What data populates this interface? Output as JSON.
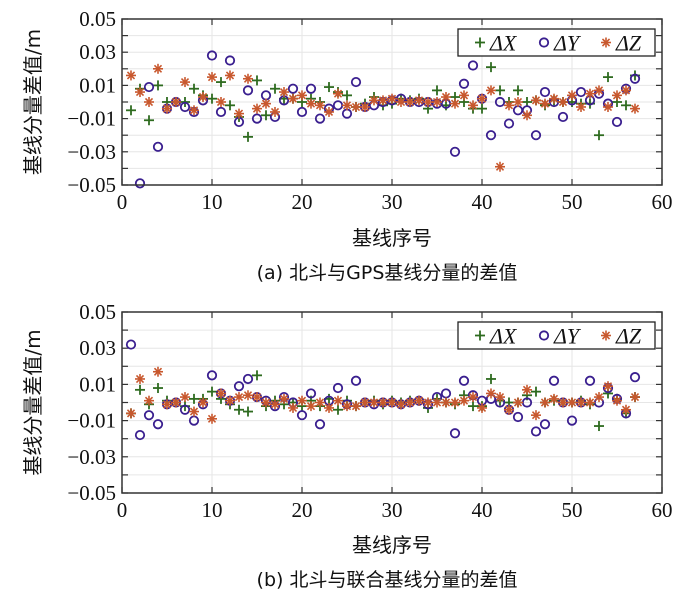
{
  "colors": {
    "dx": "#2e6b1f",
    "dy": "#3a1f8f",
    "dz": "#c8582e",
    "axis": "#333333",
    "grid": "#e6e6e6"
  },
  "chart_data": [
    {
      "type": "scatter",
      "caption": "(a) 北斗与GPS基线分量的差值",
      "xlabel": "基线序号",
      "ylabel": "基线分量差值/m",
      "xlim": [
        0,
        60
      ],
      "ylim": [
        -0.05,
        0.05
      ],
      "xticks": [
        "0",
        "10",
        "20",
        "30",
        "40",
        "50",
        "60"
      ],
      "yticks": [
        "0.05",
        "0.03",
        "0.01",
        "−0.01",
        "−0.03",
        "−0.05"
      ],
      "grid": true,
      "legend_position": "top-right",
      "x": [
        1,
        2,
        3,
        4,
        5,
        6,
        7,
        8,
        9,
        10,
        11,
        12,
        13,
        14,
        15,
        16,
        17,
        18,
        19,
        20,
        21,
        22,
        23,
        24,
        25,
        26,
        27,
        28,
        29,
        30,
        31,
        32,
        33,
        34,
        35,
        36,
        37,
        38,
        39,
        40,
        41,
        42,
        43,
        44,
        45,
        46,
        47,
        48,
        49,
        50,
        51,
        52,
        53,
        54,
        55,
        56,
        57
      ],
      "series": [
        {
          "name": "ΔX",
          "key": "dx",
          "marker": "+",
          "values": [
            -0.005,
            0.008,
            -0.011,
            0.01,
            0.0,
            0.0,
            0.0,
            0.008,
            0.004,
            0.002,
            0.012,
            -0.002,
            -0.009,
            -0.021,
            0.013,
            -0.008,
            0.008,
            0.002,
            0.002,
            0.0,
            0.002,
            0.0,
            0.009,
            0.006,
            0.004,
            -0.003,
            -0.001,
            0.003,
            -0.002,
            -0.001,
            0.002,
            0.001,
            0.002,
            -0.004,
            0.007,
            -0.002,
            0.003,
            0.0,
            -0.004,
            -0.004,
            0.021,
            0.007,
            0.0,
            0.007,
            0.0,
            0.001,
            -0.002,
            0.001,
            0.0,
            0.0,
            -0.001,
            -0.001,
            -0.02,
            0.015,
            0.0,
            -0.002,
            0.016
          ]
        },
        {
          "name": "ΔY",
          "key": "dy",
          "marker": "o",
          "values": [
            null,
            -0.049,
            0.009,
            -0.027,
            -0.004,
            0.0,
            -0.003,
            -0.006,
            0.001,
            0.028,
            -0.006,
            0.025,
            -0.012,
            0.007,
            -0.01,
            0.004,
            -0.009,
            0.001,
            0.008,
            -0.006,
            0.008,
            -0.01,
            -0.004,
            -0.002,
            -0.007,
            0.012,
            -0.003,
            -0.002,
            0.0,
            0.001,
            0.002,
            0.0,
            0.0,
            0.0,
            -0.001,
            -0.001,
            -0.03,
            0.011,
            0.022,
            0.002,
            -0.02,
            0.0,
            -0.013,
            -0.005,
            -0.005,
            -0.02,
            0.006,
            0.0,
            -0.009,
            0.001,
            0.006,
            0.001,
            0.005,
            -0.001,
            -0.012,
            0.008,
            0.014
          ]
        },
        {
          "name": "ΔZ",
          "key": "dz",
          "marker": "*",
          "values": [
            0.016,
            0.006,
            0.0,
            0.02,
            -0.004,
            0.0,
            0.012,
            -0.005,
            0.003,
            0.015,
            0.0,
            0.016,
            -0.007,
            0.014,
            -0.004,
            -0.001,
            -0.006,
            0.006,
            0.002,
            0.004,
            -0.001,
            -0.002,
            -0.006,
            0.005,
            -0.002,
            -0.003,
            -0.003,
            0.001,
            0.001,
            0.002,
            0.0,
            0.0,
            0.001,
            0.0,
            0.0,
            0.003,
            -0.001,
            0.004,
            -0.002,
            0.002,
            0.007,
            -0.039,
            -0.002,
            0.0,
            -0.008,
            0.001,
            -0.001,
            0.002,
            0.0,
            0.004,
            -0.003,
            0.005,
            0.007,
            -0.003,
            0.004,
            0.007,
            -0.004
          ]
        }
      ]
    },
    {
      "type": "scatter",
      "caption": "(b) 北斗与联合基线分量的差值",
      "xlabel": "基线序号",
      "ylabel": "基线分量差值/m",
      "xlim": [
        0,
        60
      ],
      "ylim": [
        -0.05,
        0.05
      ],
      "xticks": [
        "0",
        "10",
        "20",
        "30",
        "40",
        "50",
        "60"
      ],
      "yticks": [
        "0.05",
        "0.03",
        "0.01",
        "−0.01",
        "−0.03",
        "−0.05"
      ],
      "grid": true,
      "legend_position": "top-right",
      "x": [
        1,
        2,
        3,
        4,
        5,
        6,
        7,
        8,
        9,
        10,
        11,
        12,
        13,
        14,
        15,
        16,
        17,
        18,
        19,
        20,
        21,
        22,
        23,
        24,
        25,
        26,
        27,
        28,
        29,
        30,
        31,
        32,
        33,
        34,
        35,
        36,
        37,
        38,
        39,
        40,
        41,
        42,
        43,
        44,
        45,
        46,
        47,
        48,
        49,
        50,
        51,
        52,
        53,
        54,
        55,
        56,
        57
      ],
      "series": [
        {
          "name": "ΔX",
          "key": "dx",
          "marker": "+",
          "values": [
            -0.006,
            0.007,
            -0.001,
            0.008,
            0.001,
            0.0,
            -0.002,
            0.002,
            0.002,
            0.006,
            0.002,
            -0.001,
            -0.004,
            -0.005,
            0.015,
            -0.002,
            0.001,
            -0.001,
            0.0,
            -0.002,
            0.001,
            -0.002,
            0.002,
            -0.004,
            0.001,
            -0.002,
            0.0,
            0.001,
            -0.001,
            0.001,
            0.0,
            0.001,
            0.001,
            -0.003,
            0.002,
            0.0,
            -0.001,
            0.004,
            -0.002,
            -0.002,
            0.013,
            0.001,
            0.0,
            0.0,
            0.004,
            0.006,
            0.0,
            0.001,
            0.0,
            0.0,
            0.001,
            -0.001,
            -0.013,
            0.005,
            0.002,
            -0.006,
            0.003
          ]
        },
        {
          "name": "ΔY",
          "key": "dy",
          "marker": "o",
          "values": [
            0.032,
            -0.018,
            -0.007,
            -0.012,
            -0.001,
            0.0,
            -0.004,
            -0.01,
            -0.001,
            0.015,
            0.005,
            0.001,
            0.009,
            0.013,
            0.003,
            0.001,
            -0.002,
            0.003,
            0.0,
            -0.007,
            0.005,
            -0.012,
            0.001,
            0.008,
            -0.001,
            0.012,
            0.0,
            -0.001,
            0.0,
            0.0,
            -0.001,
            0.0,
            0.001,
            -0.001,
            0.003,
            0.005,
            -0.017,
            0.012,
            0.004,
            0.001,
            0.002,
            0.0,
            -0.004,
            -0.008,
            0.0,
            -0.016,
            -0.012,
            0.012,
            0.0,
            -0.01,
            0.0,
            0.012,
            0.0,
            0.008,
            0.002,
            -0.006,
            0.014
          ]
        },
        {
          "name": "ΔZ",
          "key": "dz",
          "marker": "*",
          "values": [
            -0.006,
            0.013,
            0.001,
            0.017,
            -0.001,
            0.0,
            0.003,
            -0.005,
            0.0,
            -0.009,
            0.005,
            0.001,
            0.003,
            0.004,
            0.003,
            0.0,
            -0.001,
            0.002,
            -0.003,
            0.001,
            -0.002,
            0.0,
            -0.003,
            0.001,
            -0.002,
            -0.002,
            0.0,
            0.0,
            0.0,
            0.0,
            -0.001,
            0.0,
            0.001,
            0.0,
            0.0,
            0.0,
            0.0,
            0.001,
            0.003,
            -0.003,
            0.005,
            0.003,
            -0.004,
            0.0,
            0.007,
            -0.007,
            0.0,
            0.002,
            0.0,
            0.0,
            0.0,
            0.0,
            0.003,
            0.009,
            0.001,
            -0.004,
            0.003
          ]
        }
      ]
    }
  ]
}
